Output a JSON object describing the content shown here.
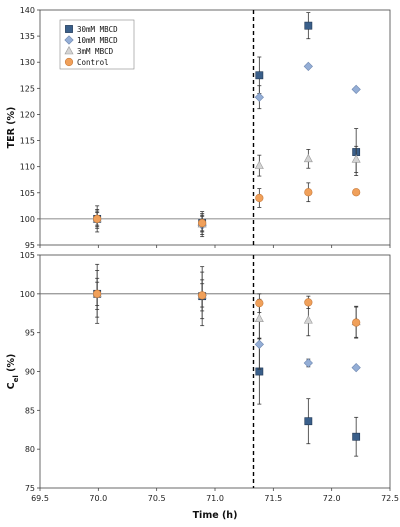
{
  "chart_data": [
    {
      "type": "scatter",
      "ylabel": "TER (%)",
      "xlim": [
        69.5,
        72.5
      ],
      "ylim": [
        95,
        140
      ],
      "yticks": [
        95,
        100,
        105,
        110,
        115,
        120,
        125,
        130,
        135,
        140
      ],
      "reference_line_y": 100,
      "vertical_dashed_line_x": 71.33,
      "legend": {
        "position": "top-left",
        "entries": [
          "30mM MBCD",
          "10mM MBCD",
          "3mM MBCD",
          "Control"
        ]
      },
      "series": [
        {
          "name": "30mM MBCD",
          "marker": "square",
          "color": "#3a5f8a",
          "x": [
            69.99,
            70.89,
            71.38,
            71.8,
            72.21
          ],
          "y": [
            100,
            99.2,
            127.5,
            137,
            112.8
          ],
          "err": [
            2.5,
            2.2,
            3.5,
            2.5,
            4.5
          ]
        },
        {
          "name": "10mM MBCD",
          "marker": "diamond",
          "color": "#94aed6",
          "x": [
            69.99,
            70.89,
            71.38,
            71.8,
            72.21
          ],
          "y": [
            100,
            98.8,
            123.3,
            129.2,
            124.8
          ],
          "err": [
            1.8,
            2.2,
            2.2,
            0,
            0
          ]
        },
        {
          "name": "3mM MBCD",
          "marker": "triangle",
          "color": "#d4d4d4",
          "x": [
            69.99,
            70.89,
            71.38,
            71.8,
            72.21
          ],
          "y": [
            100,
            99.0,
            110.2,
            111.5,
            111.4
          ],
          "err": [
            1.5,
            1.5,
            2.0,
            1.8,
            2.5
          ]
        },
        {
          "name": "Control",
          "marker": "circle",
          "color": "#f0a05a",
          "x": [
            69.99,
            70.89,
            71.38,
            71.8,
            72.21
          ],
          "y": [
            100,
            99.2,
            104,
            105.1,
            105.1
          ],
          "err": [
            1.2,
            1.5,
            1.8,
            1.8,
            0
          ]
        }
      ]
    },
    {
      "type": "scatter",
      "ylabel": "C",
      "ylabel_sub": "el",
      "ylabel_suffix": " (%)",
      "xlabel": "Time (h)",
      "xlim": [
        69.5,
        72.5
      ],
      "ylim": [
        75,
        105
      ],
      "xticks": [
        "69.5",
        "70.0",
        "70.5",
        "71.0",
        "71.5",
        "72.0",
        "72.5"
      ],
      "yticks": [
        75,
        80,
        85,
        90,
        95,
        100,
        105
      ],
      "reference_line_y": 100,
      "vertical_dashed_line_x": 71.33,
      "series": [
        {
          "name": "30mM MBCD",
          "marker": "square",
          "color": "#3a5f8a",
          "x": [
            69.99,
            70.89,
            71.38,
            71.8,
            72.21
          ],
          "y": [
            100,
            99.7,
            90.0,
            83.6,
            81.6
          ],
          "err": [
            3.8,
            3.8,
            4.2,
            2.9,
            2.5
          ]
        },
        {
          "name": "10mM MBCD",
          "marker": "diamond",
          "color": "#94aed6",
          "x": [
            69.99,
            70.89,
            71.38,
            71.8,
            72.21
          ],
          "y": [
            100,
            99.8,
            93.5,
            91.1,
            90.5
          ],
          "err": [
            3.0,
            3.0,
            3.2,
            0.5,
            0
          ]
        },
        {
          "name": "3mM MBCD",
          "marker": "triangle",
          "color": "#d4d4d4",
          "x": [
            69.99,
            70.89,
            71.38,
            71.8,
            72.21
          ],
          "y": [
            100,
            99.8,
            96.8,
            96.6,
            96.4
          ],
          "err": [
            2.0,
            2.0,
            2.5,
            2.0,
            2.0
          ]
        },
        {
          "name": "Control",
          "marker": "circle",
          "color": "#f0a05a",
          "x": [
            69.99,
            70.89,
            71.38,
            71.8,
            72.21
          ],
          "y": [
            100,
            99.8,
            98.8,
            98.9,
            96.3
          ],
          "err": [
            1.5,
            1.5,
            1.2,
            0.8,
            2.0
          ]
        }
      ]
    }
  ]
}
